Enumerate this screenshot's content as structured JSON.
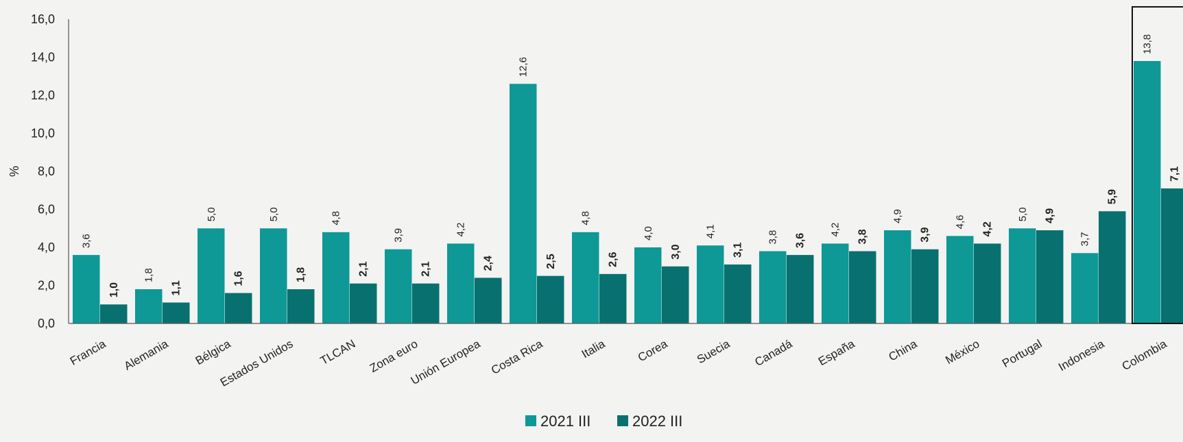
{
  "chart_data": {
    "type": "bar",
    "ylabel": "%",
    "ylim": [
      0,
      16
    ],
    "yticks": [
      "0,0",
      "2,0",
      "4,0",
      "6,0",
      "8,0",
      "10,0",
      "12,0",
      "14,0",
      "16,0"
    ],
    "categories": [
      "Francia",
      "Alemania",
      "Bélgica",
      "Estados Unidos",
      "TLCAN",
      "Zona euro",
      "Unión Europea",
      "Costa Rica",
      "Italia",
      "Corea",
      "Suecia",
      "Canadá",
      "España",
      "China",
      "México",
      "Portugal",
      "Indonesia",
      "Colombia"
    ],
    "series": [
      {
        "name": "2021 III",
        "values": [
          3.6,
          1.8,
          5.0,
          5.0,
          4.8,
          3.9,
          4.2,
          12.6,
          4.8,
          4.0,
          4.1,
          3.8,
          4.2,
          4.9,
          4.6,
          5.0,
          3.7,
          13.8
        ],
        "labels": [
          "3,6",
          "1,8",
          "5,0",
          "5,0",
          "4,8",
          "3,9",
          "4,2",
          "12,6",
          "4,8",
          "4,0",
          "4,1",
          "3,8",
          "4,2",
          "4,9",
          "4,6",
          "5,0",
          "3,7",
          "13,8"
        ]
      },
      {
        "name": "2022 III",
        "values": [
          1.0,
          1.1,
          1.6,
          1.8,
          2.1,
          2.1,
          2.4,
          2.5,
          2.6,
          3.0,
          3.1,
          3.6,
          3.8,
          3.9,
          4.2,
          4.9,
          5.9,
          7.1
        ],
        "labels": [
          "1,0",
          "1,1",
          "1,6",
          "1,8",
          "2,1",
          "2,1",
          "2,4",
          "2,5",
          "2,6",
          "3,0",
          "3,1",
          "3,6",
          "3,8",
          "3,9",
          "4,2",
          "4,9",
          "5,9",
          "7,1"
        ]
      }
    ],
    "highlight": "Colombia",
    "legend": "bottom-center",
    "colors": {
      "series1": "#0e9896",
      "series2": "#08716f",
      "axis": "#555555",
      "highlight_box": "#111111"
    },
    "grid": false
  }
}
